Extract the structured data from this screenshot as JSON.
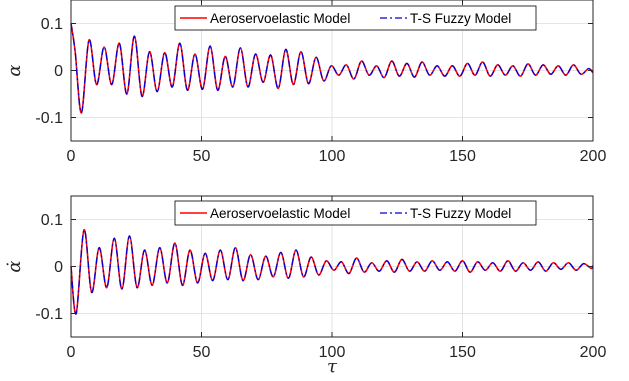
{
  "chart_data": [
    {
      "type": "line",
      "ylabel": "α",
      "xlabel": "",
      "xlim": [
        0,
        200
      ],
      "ylim": [
        -0.15,
        0.15
      ],
      "xticks": [
        0,
        50,
        100,
        150,
        200
      ],
      "xtick_labels": [
        "0",
        "50",
        "100",
        "150",
        "200"
      ],
      "yticks": [
        0.1,
        0,
        -0.1
      ],
      "ytick_labels": [
        "0.1",
        "0",
        "-0.1"
      ],
      "grid": true,
      "legend_position": "top-right",
      "series": [
        {
          "name": "Aeroservoelastic Model",
          "color": "#ff0000",
          "style": "solid",
          "x": [
            0,
            1.6,
            4.0,
            6.9,
            9.8,
            12.7,
            15.6,
            18.5,
            21.4,
            24.3,
            27.2,
            30.1,
            33.0,
            35.9,
            38.8,
            41.7,
            44.6,
            47.5,
            50.4,
            53.3,
            56.2,
            59.1,
            62.0,
            64.9,
            67.8,
            70.7,
            73.6,
            76.5,
            79.4,
            82.3,
            85.2,
            88.1,
            91.0,
            93.9,
            96.8,
            99.7,
            102.6,
            105.5,
            108.4,
            111.3,
            114.2,
            117.1,
            120.0,
            122.9,
            125.8,
            128.7,
            131.6,
            134.5,
            137.4,
            140.3,
            143.2,
            146.1,
            149.0,
            151.9,
            154.8,
            157.7,
            160.6,
            163.5,
            166.4,
            169.3,
            172.2,
            175.1,
            178.0,
            180.9,
            183.8,
            186.7,
            189.6,
            192.5,
            195.4,
            198.3,
            200
          ],
          "y": [
            0.1,
            0.04,
            -0.09,
            0.065,
            -0.03,
            0.05,
            -0.03,
            0.058,
            -0.05,
            0.073,
            -0.055,
            0.04,
            -0.045,
            0.038,
            -0.035,
            0.058,
            -0.042,
            0.035,
            -0.04,
            0.052,
            -0.042,
            0.03,
            -0.035,
            0.048,
            -0.035,
            0.035,
            -0.025,
            0.033,
            -0.038,
            0.045,
            -0.03,
            0.04,
            -0.028,
            0.028,
            -0.022,
            0.01,
            -0.01,
            0.012,
            -0.018,
            0.02,
            -0.01,
            0.01,
            -0.015,
            0.02,
            -0.012,
            0.015,
            -0.014,
            0.018,
            -0.01,
            0.01,
            -0.012,
            0.01,
            -0.012,
            0.015,
            -0.01,
            0.018,
            -0.012,
            0.012,
            -0.01,
            0.01,
            -0.012,
            0.014,
            -0.01,
            0.012,
            -0.008,
            0.01,
            -0.01,
            0.012,
            -0.008,
            0.004,
            -0.005
          ]
        },
        {
          "name": "T-S Fuzzy Model",
          "color": "#0000d8",
          "style": "dashdot",
          "x": [
            0,
            1.6,
            4.0,
            6.9,
            9.8,
            12.7,
            15.6,
            18.5,
            21.4,
            24.3,
            27.2,
            30.1,
            33.0,
            35.9,
            38.8,
            41.7,
            44.6,
            47.5,
            50.4,
            53.3,
            56.2,
            59.1,
            62.0,
            64.9,
            67.8,
            70.7,
            73.6,
            76.5,
            79.4,
            82.3,
            85.2,
            88.1,
            91.0,
            93.9,
            96.8,
            99.7,
            102.6,
            105.5,
            108.4,
            111.3,
            114.2,
            117.1,
            120.0,
            122.9,
            125.8,
            128.7,
            131.6,
            134.5,
            137.4,
            140.3,
            143.2,
            146.1,
            149.0,
            151.9,
            154.8,
            157.7,
            160.6,
            163.5,
            166.4,
            169.3,
            172.2,
            175.1,
            178.0,
            180.9,
            183.8,
            186.7,
            189.6,
            192.5,
            195.4,
            198.3,
            200
          ],
          "y": [
            0.1,
            0.04,
            -0.09,
            0.065,
            -0.03,
            0.05,
            -0.03,
            0.058,
            -0.05,
            0.073,
            -0.055,
            0.04,
            -0.045,
            0.038,
            -0.035,
            0.058,
            -0.042,
            0.035,
            -0.04,
            0.052,
            -0.042,
            0.03,
            -0.035,
            0.048,
            -0.035,
            0.035,
            -0.025,
            0.033,
            -0.038,
            0.045,
            -0.03,
            0.04,
            -0.028,
            0.028,
            -0.022,
            0.01,
            -0.01,
            0.012,
            -0.018,
            0.02,
            -0.01,
            0.01,
            -0.015,
            0.02,
            -0.012,
            0.015,
            -0.014,
            0.018,
            -0.01,
            0.01,
            -0.012,
            0.01,
            -0.012,
            0.015,
            -0.01,
            0.018,
            -0.012,
            0.012,
            -0.01,
            0.01,
            -0.012,
            0.014,
            -0.01,
            0.012,
            -0.008,
            0.01,
            -0.01,
            0.012,
            -0.008,
            0.004,
            -0.005
          ]
        }
      ]
    },
    {
      "type": "line",
      "ylabel": "α̇",
      "xlabel": "τ",
      "xlim": [
        0,
        200
      ],
      "ylim": [
        -0.15,
        0.15
      ],
      "xticks": [
        0,
        50,
        100,
        150,
        200
      ],
      "xtick_labels": [
        "0",
        "50",
        "100",
        "150",
        "200"
      ],
      "yticks": [
        0.1,
        0,
        -0.1
      ],
      "ytick_labels": [
        "0.1",
        "0",
        "-0.1"
      ],
      "grid": true,
      "legend_position": "top-right",
      "series": [
        {
          "name": "Aeroservoelastic Model",
          "color": "#ff0000",
          "style": "solid",
          "x": [
            0,
            2.0,
            5.0,
            7.9,
            10.8,
            13.7,
            16.6,
            19.5,
            22.4,
            25.3,
            28.2,
            31.1,
            34.0,
            36.9,
            39.8,
            42.7,
            45.6,
            48.5,
            51.4,
            54.3,
            57.2,
            60.1,
            63.0,
            65.9,
            68.8,
            71.7,
            74.6,
            77.5,
            80.4,
            83.3,
            86.2,
            89.1,
            92.0,
            94.9,
            97.8,
            100.7,
            103.6,
            106.5,
            109.4,
            112.3,
            115.2,
            118.1,
            121.0,
            123.9,
            126.8,
            129.7,
            132.6,
            135.5,
            138.4,
            141.3,
            144.2,
            147.1,
            150.0,
            152.9,
            155.8,
            158.7,
            161.6,
            164.5,
            167.4,
            170.3,
            173.2,
            176.1,
            179.0,
            181.9,
            184.8,
            187.7,
            190.6,
            193.5,
            196.4,
            199.3,
            200
          ],
          "y": [
            0.0,
            -0.1,
            0.078,
            -0.055,
            0.04,
            -0.045,
            0.06,
            -0.048,
            0.065,
            -0.045,
            0.035,
            -0.04,
            0.04,
            -0.035,
            0.05,
            -0.04,
            0.035,
            -0.035,
            0.028,
            -0.03,
            0.035,
            -0.028,
            0.04,
            -0.03,
            0.025,
            -0.028,
            0.022,
            -0.022,
            0.03,
            -0.025,
            0.035,
            -0.022,
            0.02,
            -0.018,
            0.012,
            -0.008,
            0.01,
            -0.015,
            0.018,
            -0.012,
            0.008,
            -0.01,
            0.012,
            -0.012,
            0.015,
            -0.01,
            0.01,
            -0.01,
            0.012,
            -0.008,
            0.01,
            -0.01,
            0.012,
            -0.012,
            0.01,
            -0.008,
            0.008,
            -0.01,
            0.012,
            -0.01,
            0.008,
            -0.008,
            0.01,
            -0.01,
            0.008,
            -0.006,
            0.008,
            -0.008,
            0.006,
            -0.004,
            0.002
          ]
        },
        {
          "name": "T-S Fuzzy Model",
          "color": "#0000d8",
          "style": "dashdot",
          "x": [
            0,
            2.0,
            5.0,
            7.9,
            10.8,
            13.7,
            16.6,
            19.5,
            22.4,
            25.3,
            28.2,
            31.1,
            34.0,
            36.9,
            39.8,
            42.7,
            45.6,
            48.5,
            51.4,
            54.3,
            57.2,
            60.1,
            63.0,
            65.9,
            68.8,
            71.7,
            74.6,
            77.5,
            80.4,
            83.3,
            86.2,
            89.1,
            92.0,
            94.9,
            97.8,
            100.7,
            103.6,
            106.5,
            109.4,
            112.3,
            115.2,
            118.1,
            121.0,
            123.9,
            126.8,
            129.7,
            132.6,
            135.5,
            138.4,
            141.3,
            144.2,
            147.1,
            150.0,
            152.9,
            155.8,
            158.7,
            161.6,
            164.5,
            167.4,
            170.3,
            173.2,
            176.1,
            179.0,
            181.9,
            184.8,
            187.7,
            190.6,
            193.5,
            196.4,
            199.3,
            200
          ],
          "y": [
            0.0,
            -0.1,
            0.078,
            -0.055,
            0.04,
            -0.045,
            0.06,
            -0.048,
            0.065,
            -0.045,
            0.035,
            -0.04,
            0.04,
            -0.035,
            0.05,
            -0.04,
            0.035,
            -0.035,
            0.028,
            -0.03,
            0.035,
            -0.028,
            0.04,
            -0.03,
            0.025,
            -0.028,
            0.022,
            -0.022,
            0.03,
            -0.025,
            0.035,
            -0.022,
            0.02,
            -0.018,
            0.012,
            -0.008,
            0.01,
            -0.015,
            0.018,
            -0.012,
            0.008,
            -0.01,
            0.012,
            -0.012,
            0.015,
            -0.01,
            0.01,
            -0.01,
            0.012,
            -0.008,
            0.01,
            -0.01,
            0.012,
            -0.012,
            0.01,
            -0.008,
            0.008,
            -0.01,
            0.012,
            -0.01,
            0.008,
            -0.008,
            0.01,
            -0.01,
            0.008,
            -0.006,
            0.008,
            -0.008,
            0.006,
            -0.004,
            0.002
          ]
        }
      ]
    }
  ]
}
